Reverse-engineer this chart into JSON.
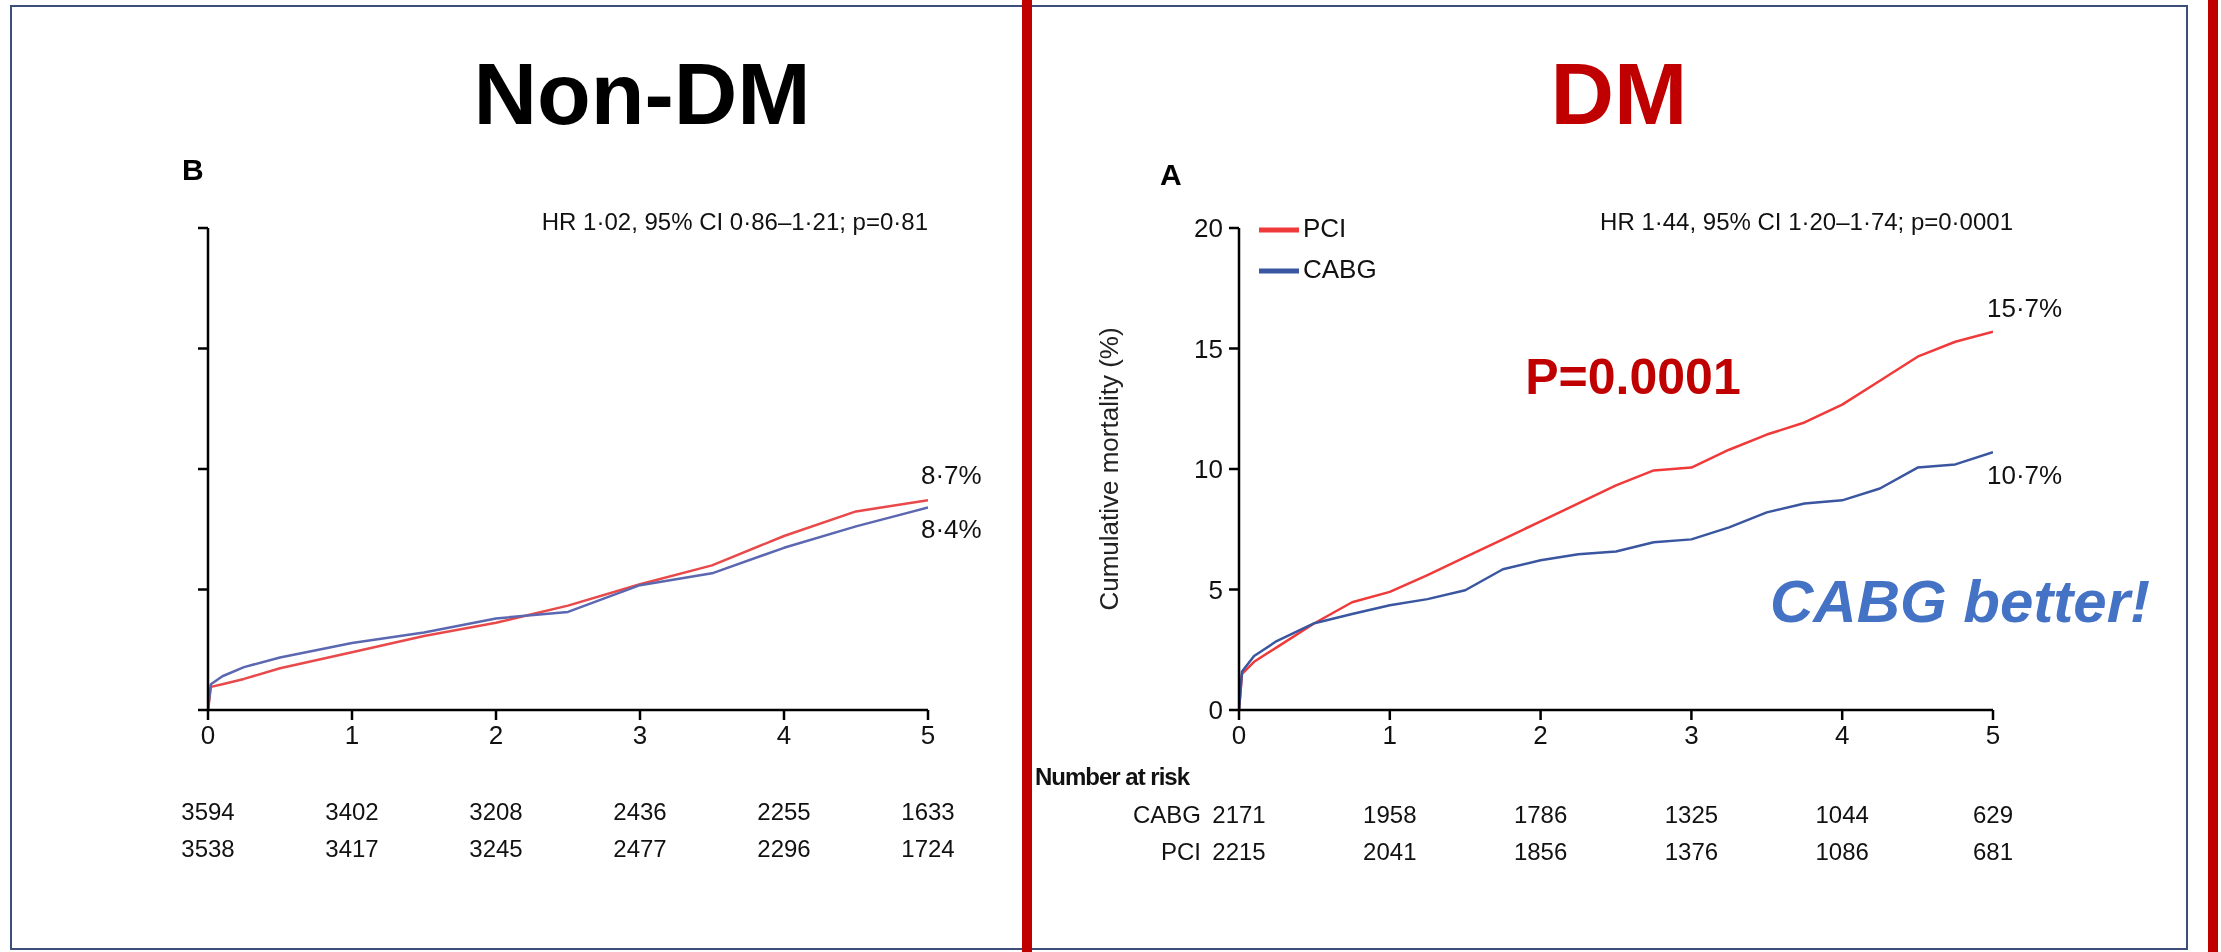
{
  "chart_data": [
    {
      "type": "line",
      "title": "Non-DM",
      "subtitle": "B",
      "xlim": [
        0,
        5
      ],
      "xticks": [
        0,
        1,
        2,
        3,
        4,
        5
      ],
      "ylim": [
        0,
        20
      ],
      "yticks": [
        {
          "value": 0,
          "label": null
        },
        {
          "value": 5,
          "label": null
        },
        {
          "value": 10,
          "label": null
        },
        {
          "value": 15,
          "label": null
        },
        {
          "value": 20,
          "label": null
        }
      ],
      "tick_labels": "x",
      "grid": false,
      "legend": false,
      "series": [
        {
          "color": "#e8494a",
          "x": [
            0,
            0.02,
            0.1,
            0.25,
            0.5,
            1,
            1.5,
            2,
            2.5,
            3,
            3.5,
            4,
            4.5,
            5
          ],
          "values": [
            0,
            0.96,
            1.07,
            1.29,
            1.73,
            2.4,
            3.07,
            3.62,
            4.33,
            5.22,
            6.0,
            7.22,
            8.24,
            8.7
          ]
        },
        {
          "color": "#5b67b0",
          "x": [
            0,
            0.02,
            0.1,
            0.25,
            0.5,
            1,
            1.5,
            2,
            2.5,
            3,
            3.5,
            4,
            4.5,
            5
          ],
          "values": [
            0,
            1.07,
            1.4,
            1.78,
            2.18,
            2.78,
            3.22,
            3.8,
            4.07,
            5.18,
            5.67,
            6.73,
            7.62,
            8.4
          ]
        }
      ],
      "annotations": [
        "HR 1·02, 95% CI 0·86–1·21; p=0·81",
        "8·7%",
        "8·4%",
        "3594 3402 3208 2436 2255 1633",
        "3538 3417 3245 2477 2296 1724"
      ]
    },
    {
      "type": "line",
      "title": "DM",
      "subtitle": "A",
      "ylabel": "Cumulative mortality (%)",
      "xlim": [
        0,
        5
      ],
      "xticks": [
        0,
        1,
        2,
        3,
        4,
        5
      ],
      "ylim": [
        0,
        20
      ],
      "yticks": [
        0,
        5,
        10,
        15,
        20
      ],
      "grid": false,
      "legend": "top left",
      "series": [
        {
          "name": "PCI",
          "color": "#f03a3a",
          "x": [
            0,
            0.02,
            0.1,
            0.25,
            0.5,
            0.75,
            1,
            1.25,
            1.5,
            1.75,
            2,
            2.25,
            2.5,
            2.75,
            3,
            3.25,
            3.5,
            3.75,
            4,
            4.25,
            4.5,
            4.75,
            5
          ],
          "values": [
            0,
            1.5,
            2.0,
            2.6,
            3.6,
            4.47,
            4.9,
            5.6,
            6.34,
            7.08,
            7.83,
            8.57,
            9.32,
            9.94,
            10.06,
            10.8,
            11.43,
            11.93,
            12.67,
            13.66,
            14.66,
            15.28,
            15.7
          ]
        },
        {
          "name": "CABG",
          "color": "#3a56a0",
          "x": [
            0,
            0.02,
            0.1,
            0.25,
            0.5,
            0.75,
            1,
            1.25,
            1.5,
            1.75,
            2,
            2.25,
            2.5,
            2.75,
            3,
            3.25,
            3.5,
            3.75,
            4,
            4.25,
            4.5,
            4.75,
            5
          ],
          "values": [
            0,
            1.6,
            2.24,
            2.86,
            3.6,
            3.98,
            4.35,
            4.6,
            4.97,
            5.84,
            6.21,
            6.46,
            6.58,
            6.96,
            7.08,
            7.58,
            8.2,
            8.57,
            8.7,
            9.19,
            10.06,
            10.19,
            10.7
          ]
        }
      ],
      "annotations": [
        "HR 1·44, 95% CI 1·20–1·74; p=0·0001",
        "P=0.0001",
        "CABG better!",
        "15·7%",
        "10·7%",
        "Number at risk",
        "CABG 2171 1958 1786 1325 1044 629",
        "PCI 2215 2041 1856 1376 1086 681"
      ]
    }
  ]
}
